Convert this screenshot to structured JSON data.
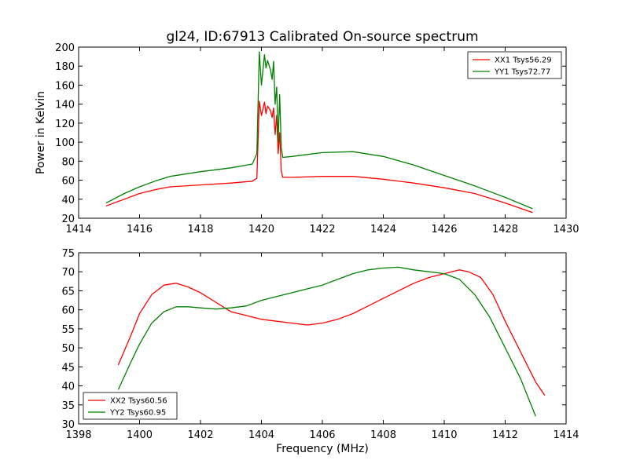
{
  "chart_data": [
    {
      "type": "line",
      "title": "gl24, ID:67913 Calibrated On-source spectrum",
      "xlabel": "",
      "ylabel": "Power in Kelvin",
      "xlim": [
        1414,
        1430
      ],
      "ylim": [
        20,
        200
      ],
      "xticks": [
        1414,
        1416,
        1418,
        1420,
        1422,
        1424,
        1426,
        1428,
        1430
      ],
      "yticks": [
        20,
        40,
        60,
        80,
        100,
        120,
        140,
        160,
        180,
        200
      ],
      "legend_position": "top-right",
      "series": [
        {
          "name": "XX1 Tsys56.29",
          "color": "#ff0000",
          "x": [
            1414.9,
            1415.5,
            1416.0,
            1416.5,
            1417.0,
            1418.0,
            1419.0,
            1419.7,
            1419.85,
            1419.93,
            1420.0,
            1420.1,
            1420.15,
            1420.2,
            1420.3,
            1420.35,
            1420.4,
            1420.45,
            1420.5,
            1420.55,
            1420.6,
            1420.65,
            1420.7,
            1421.0,
            1422.0,
            1423.0,
            1424.0,
            1425.0,
            1426.0,
            1427.0,
            1428.0,
            1428.9
          ],
          "y": [
            33,
            40,
            46,
            50,
            53,
            55,
            57,
            59,
            62,
            143,
            128,
            142,
            130,
            138,
            133,
            126,
            136,
            108,
            128,
            88,
            110,
            70,
            63,
            63,
            64,
            64,
            61,
            57,
            52,
            46,
            36,
            26
          ]
        },
        {
          "name": "YY1 Tsys72.77",
          "color": "#008000",
          "x": [
            1414.9,
            1415.5,
            1416.0,
            1416.5,
            1417.0,
            1418.0,
            1419.0,
            1419.7,
            1419.85,
            1419.93,
            1420.0,
            1420.1,
            1420.15,
            1420.2,
            1420.3,
            1420.35,
            1420.4,
            1420.45,
            1420.5,
            1420.55,
            1420.6,
            1420.65,
            1420.7,
            1421.0,
            1422.0,
            1423.0,
            1424.0,
            1425.0,
            1426.0,
            1427.0,
            1428.0,
            1428.9
          ],
          "y": [
            36,
            46,
            53,
            59,
            64,
            69,
            73,
            77,
            88,
            195,
            160,
            192,
            178,
            186,
            176,
            166,
            185,
            140,
            158,
            100,
            150,
            95,
            84,
            85,
            89,
            90,
            85,
            76,
            65,
            54,
            42,
            30
          ]
        }
      ]
    },
    {
      "type": "line",
      "title": "",
      "xlabel": "Frequency (MHz)",
      "ylabel": "",
      "xlim": [
        1398,
        1414
      ],
      "ylim": [
        30,
        75
      ],
      "xticks": [
        1398,
        1400,
        1402,
        1404,
        1406,
        1408,
        1410,
        1412,
        1414
      ],
      "yticks": [
        30,
        35,
        40,
        45,
        50,
        55,
        60,
        65,
        70,
        75
      ],
      "legend_position": "lower-left",
      "series": [
        {
          "name": "XX2 Tsys60.56",
          "color": "#ff0000",
          "x": [
            1399.3,
            1399.7,
            1400.0,
            1400.4,
            1400.8,
            1401.2,
            1401.6,
            1402.0,
            1402.5,
            1403.0,
            1403.5,
            1404.0,
            1404.5,
            1405.0,
            1405.5,
            1406.0,
            1406.5,
            1407.0,
            1407.5,
            1408.0,
            1408.5,
            1409.0,
            1409.5,
            1410.0,
            1410.5,
            1410.8,
            1411.2,
            1411.6,
            1412.0,
            1412.5,
            1413.0,
            1413.3
          ],
          "y": [
            45.5,
            53,
            59,
            64,
            66.5,
            67,
            66,
            64.5,
            62,
            59.5,
            58.5,
            57.5,
            57,
            56.5,
            56,
            56.5,
            57.5,
            59,
            61,
            63,
            65,
            67,
            68.5,
            69.5,
            70.5,
            70,
            68.5,
            64,
            57,
            49,
            41,
            37.5
          ]
        },
        {
          "name": "YY2 Tsys60.95",
          "color": "#008000",
          "x": [
            1399.3,
            1399.7,
            1400.0,
            1400.4,
            1400.8,
            1401.2,
            1401.6,
            1402.0,
            1402.5,
            1403.0,
            1403.5,
            1404.0,
            1404.5,
            1405.0,
            1405.5,
            1406.0,
            1406.5,
            1407.0,
            1407.5,
            1408.0,
            1408.5,
            1409.0,
            1409.5,
            1410.0,
            1410.5,
            1411.0,
            1411.5,
            1412.0,
            1412.5,
            1413.0
          ],
          "y": [
            39,
            46,
            51,
            56.5,
            59.5,
            60.8,
            60.8,
            60.5,
            60.2,
            60.5,
            61,
            62.5,
            63.5,
            64.5,
            65.5,
            66.5,
            68,
            69.5,
            70.5,
            71,
            71.2,
            70.5,
            70,
            69.5,
            68,
            64,
            58,
            50,
            42,
            32
          ]
        }
      ]
    }
  ]
}
